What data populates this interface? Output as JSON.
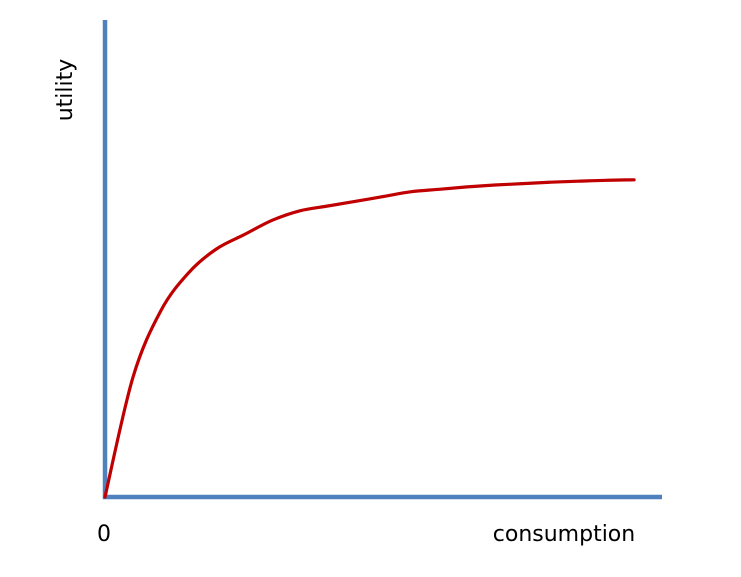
{
  "chart_data": {
    "type": "line",
    "title": "",
    "xlabel": "consumption",
    "ylabel": "utility",
    "x_tick_labels": [
      "0"
    ],
    "xlim": [
      0,
      1
    ],
    "ylim": [
      0,
      1
    ],
    "grid": false,
    "legend": "none",
    "series": [
      {
        "x": [
          0,
          0.05,
          0.1,
          0.15,
          0.2,
          0.25,
          0.3,
          0.35,
          0.4,
          0.45,
          0.5,
          0.55,
          0.6,
          0.65,
          0.7,
          0.75,
          0.8,
          0.85,
          0.9,
          0.95
        ],
        "values": [
          0,
          0.25,
          0.39,
          0.47,
          0.52,
          0.55,
          0.58,
          0.6,
          0.61,
          0.62,
          0.63,
          0.64,
          0.645,
          0.65,
          0.654,
          0.657,
          0.66,
          0.662,
          0.664,
          0.665
        ]
      }
    ]
  },
  "colors": {
    "axes": "#4f81bd",
    "curve": "#c00000"
  }
}
